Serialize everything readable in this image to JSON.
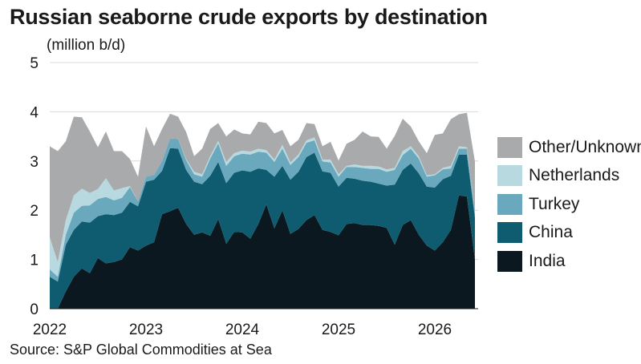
{
  "title": "Russian seaborne crude exports by destination",
  "units_label": "(million b/d)",
  "source": "Source: S&P Global Commodities at Sea",
  "chart_data": {
    "type": "area",
    "stacked": true,
    "ylim": [
      0,
      5
    ],
    "yticks": [
      0,
      1,
      2,
      3,
      4,
      5
    ],
    "xlim": [
      2022.0,
      2026.45
    ],
    "xticks": [
      2022,
      2023,
      2024,
      2025,
      2026
    ],
    "grid": true,
    "legend_position": "right",
    "x": [
      2022.0,
      2022.083,
      2022.167,
      2022.25,
      2022.333,
      2022.417,
      2022.5,
      2022.583,
      2022.667,
      2022.75,
      2022.833,
      2022.917,
      2023.0,
      2023.083,
      2023.167,
      2023.25,
      2023.333,
      2023.417,
      2023.5,
      2023.583,
      2023.667,
      2023.75,
      2023.833,
      2023.917,
      2024.0,
      2024.083,
      2024.167,
      2024.25,
      2024.333,
      2024.417,
      2024.5,
      2024.583,
      2024.667,
      2024.75,
      2024.833,
      2024.917,
      2025.0,
      2025.083,
      2025.167,
      2025.25,
      2025.333,
      2025.417,
      2025.5,
      2025.583,
      2025.667,
      2025.75,
      2025.833,
      2025.917,
      2026.0,
      2026.083,
      2026.167,
      2026.25,
      2026.333,
      2026.417
    ],
    "series": [
      {
        "name": "India",
        "color": "#0b1820",
        "values": [
          0.0,
          0.0,
          0.35,
          0.65,
          0.82,
          0.72,
          1.03,
          0.92,
          0.95,
          1.0,
          1.25,
          1.18,
          1.28,
          1.35,
          1.92,
          1.98,
          2.05,
          1.72,
          1.5,
          1.55,
          1.48,
          1.82,
          1.32,
          1.56,
          1.55,
          1.42,
          1.72,
          2.12,
          1.63,
          2.0,
          1.52,
          1.62,
          1.8,
          1.9,
          1.6,
          1.56,
          1.49,
          1.72,
          1.74,
          1.7,
          1.7,
          1.68,
          1.64,
          1.3,
          1.7,
          1.8,
          1.5,
          1.28,
          1.18,
          1.35,
          1.6,
          2.3,
          2.28,
          1.0
        ]
      },
      {
        "name": "China",
        "color": "#0f5c70",
        "values": [
          0.65,
          0.55,
          0.95,
          0.95,
          0.95,
          1.03,
          0.85,
          1.0,
          0.95,
          0.95,
          0.92,
          0.9,
          1.3,
          1.27,
          0.88,
          1.28,
          1.2,
          1.1,
          1.08,
          0.98,
          1.22,
          1.16,
          1.23,
          1.2,
          1.26,
          1.36,
          1.13,
          0.7,
          1.05,
          0.9,
          1.1,
          1.16,
          1.28,
          1.27,
          1.19,
          1.2,
          0.99,
          0.94,
          0.9,
          0.9,
          0.88,
          0.86,
          0.86,
          1.22,
          1.12,
          1.15,
          1.25,
          1.2,
          1.28,
          1.28,
          1.1,
          0.83,
          0.85,
          0.85
        ]
      },
      {
        "name": "Turkey",
        "color": "#6aa9bd",
        "values": [
          0.15,
          0.1,
          0.2,
          0.35,
          0.32,
          0.35,
          0.35,
          0.35,
          0.3,
          0.3,
          0.3,
          0.1,
          0.1,
          0.1,
          0.2,
          0.2,
          0.2,
          0.2,
          0.15,
          0.15,
          0.35,
          0.38,
          0.35,
          0.34,
          0.34,
          0.35,
          0.34,
          0.35,
          0.3,
          0.35,
          0.3,
          0.3,
          0.29,
          0.25,
          0.2,
          0.21,
          0.2,
          0.22,
          0.24,
          0.26,
          0.26,
          0.3,
          0.28,
          0.3,
          0.3,
          0.3,
          0.3,
          0.2,
          0.25,
          0.2,
          0.15,
          0.12,
          0.12,
          0.1
        ]
      },
      {
        "name": "Netherlands",
        "color": "#b9d9e0",
        "values": [
          0.65,
          0.3,
          0.3,
          0.35,
          0.35,
          0.25,
          0.2,
          0.38,
          0.2,
          0.2,
          0.02,
          0.0,
          0.0,
          0.0,
          0.0,
          0.0,
          0.0,
          0.02,
          0.05,
          0.05,
          0.05,
          0.05,
          0.08,
          0.06,
          0.06,
          0.06,
          0.06,
          0.05,
          0.05,
          0.08,
          0.05,
          0.05,
          0.05,
          0.06,
          0.04,
          0.06,
          0.05,
          0.02,
          0.05,
          0.04,
          0.06,
          0.05,
          0.05,
          0.04,
          0.08,
          0.05,
          0.05,
          0.03,
          0.02,
          0.03,
          0.05,
          0.05,
          0.03,
          0.02
        ]
      },
      {
        "name": "Other/Unknown",
        "color": "#a9aaac",
        "values": [
          1.85,
          2.25,
          1.6,
          1.6,
          1.45,
          1.25,
          0.85,
          0.95,
          0.8,
          0.75,
          0.55,
          0.5,
          1.02,
          0.58,
          0.65,
          0.5,
          0.45,
          0.55,
          0.32,
          0.52,
          0.55,
          0.36,
          0.52,
          0.48,
          0.35,
          0.35,
          0.55,
          0.55,
          0.53,
          0.3,
          0.33,
          0.3,
          0.35,
          0.27,
          0.27,
          0.36,
          0.28,
          0.45,
          0.5,
          0.7,
          0.6,
          0.6,
          0.42,
          0.65,
          0.66,
          0.4,
          0.3,
          0.45,
          0.8,
          0.7,
          0.95,
          0.65,
          0.7,
          1.02
        ]
      }
    ],
    "legend": [
      "Other/Unknown",
      "Netherlands",
      "Turkey",
      "China",
      "India"
    ]
  }
}
